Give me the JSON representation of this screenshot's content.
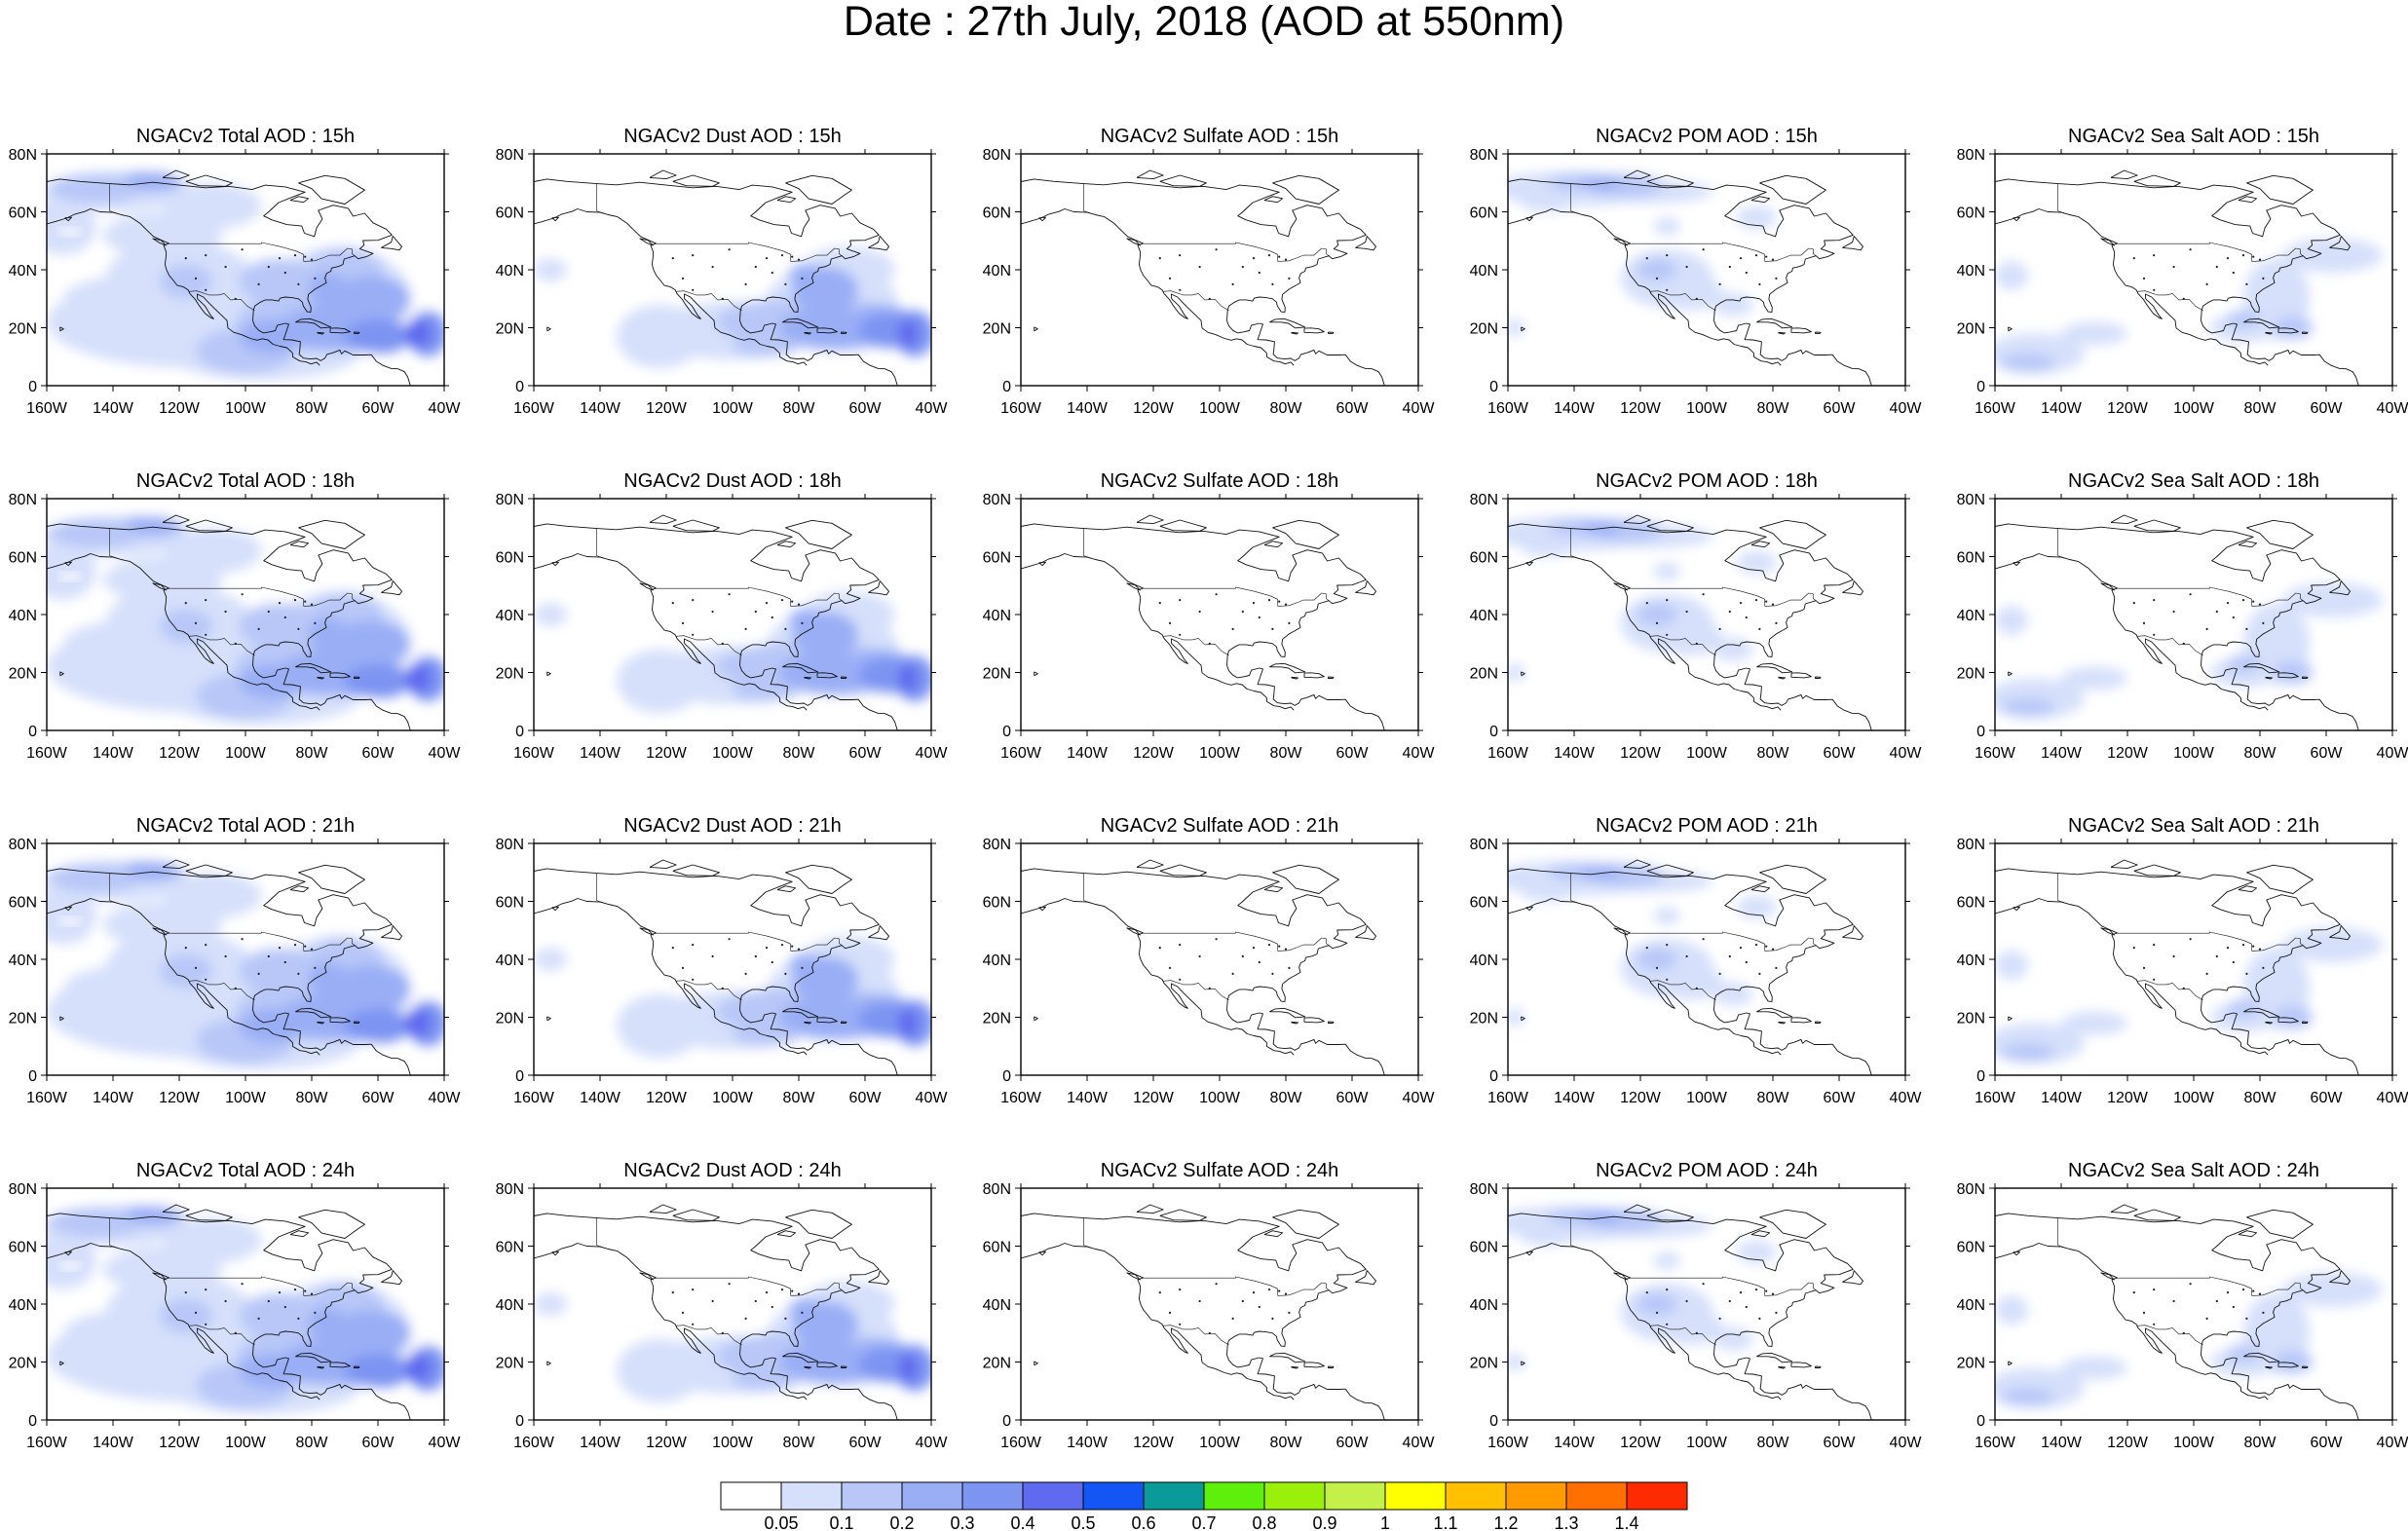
{
  "figure": {
    "title": "Date : 27th July, 2018 (AOD at 550nm)"
  },
  "panels": [
    {
      "row": 0,
      "col": 0,
      "title": "NGACv2 Total AOD : 15h",
      "variable": "total",
      "hour": "15h"
    },
    {
      "row": 0,
      "col": 1,
      "title": "NGACv2 Dust AOD : 15h",
      "variable": "dust",
      "hour": "15h"
    },
    {
      "row": 0,
      "col": 2,
      "title": "NGACv2 Sulfate AOD : 15h",
      "variable": "sulfate",
      "hour": "15h"
    },
    {
      "row": 0,
      "col": 3,
      "title": "NGACv2 POM AOD : 15h",
      "variable": "pom",
      "hour": "15h"
    },
    {
      "row": 0,
      "col": 4,
      "title": "NGACv2 Sea Salt AOD : 15h",
      "variable": "seasalt",
      "hour": "15h"
    },
    {
      "row": 1,
      "col": 0,
      "title": "NGACv2 Total AOD : 18h",
      "variable": "total",
      "hour": "18h"
    },
    {
      "row": 1,
      "col": 1,
      "title": "NGACv2 Dust AOD : 18h",
      "variable": "dust",
      "hour": "18h"
    },
    {
      "row": 1,
      "col": 2,
      "title": "NGACv2 Sulfate AOD : 18h",
      "variable": "sulfate",
      "hour": "18h"
    },
    {
      "row": 1,
      "col": 3,
      "title": "NGACv2 POM AOD : 18h",
      "variable": "pom",
      "hour": "18h"
    },
    {
      "row": 1,
      "col": 4,
      "title": "NGACv2 Sea Salt AOD : 18h",
      "variable": "seasalt",
      "hour": "18h"
    },
    {
      "row": 2,
      "col": 0,
      "title": "NGACv2 Total AOD : 21h",
      "variable": "total",
      "hour": "21h"
    },
    {
      "row": 2,
      "col": 1,
      "title": "NGACv2 Dust AOD : 21h",
      "variable": "dust",
      "hour": "21h"
    },
    {
      "row": 2,
      "col": 2,
      "title": "NGACv2 Sulfate AOD : 21h",
      "variable": "sulfate",
      "hour": "21h"
    },
    {
      "row": 2,
      "col": 3,
      "title": "NGACv2 POM AOD : 21h",
      "variable": "pom",
      "hour": "21h"
    },
    {
      "row": 2,
      "col": 4,
      "title": "NGACv2 Sea Salt AOD : 21h",
      "variable": "seasalt",
      "hour": "21h"
    },
    {
      "row": 3,
      "col": 0,
      "title": "NGACv2 Total AOD : 24h",
      "variable": "total",
      "hour": "24h"
    },
    {
      "row": 3,
      "col": 1,
      "title": "NGACv2 Dust AOD : 24h",
      "variable": "dust",
      "hour": "24h"
    },
    {
      "row": 3,
      "col": 2,
      "title": "NGACv2 Sulfate AOD : 24h",
      "variable": "sulfate",
      "hour": "24h"
    },
    {
      "row": 3,
      "col": 3,
      "title": "NGACv2 POM AOD : 24h",
      "variable": "pom",
      "hour": "24h"
    },
    {
      "row": 3,
      "col": 4,
      "title": "NGACv2 Sea Salt  AOD : 24h",
      "variable": "seasalt",
      "hour": "24h"
    }
  ],
  "axes": {
    "lon_ticks": [
      "160W",
      "140W",
      "120W",
      "100W",
      "80W",
      "60W",
      "40W"
    ],
    "lon_values": [
      -160,
      -140,
      -120,
      -100,
      -80,
      -60,
      -40
    ],
    "lat_ticks": [
      "0",
      "20N",
      "40N",
      "60N",
      "80N"
    ],
    "lat_values": [
      0,
      20,
      40,
      60,
      80
    ],
    "lon_range": [
      -160,
      -40
    ],
    "lat_range": [
      0,
      80
    ]
  },
  "colorbar": {
    "labels": [
      "0.05",
      "0.1",
      "0.2",
      "0.3",
      "0.4",
      "0.5",
      "0.6",
      "0.7",
      "0.8",
      "0.9",
      "1",
      "1.1",
      "1.2",
      "1.3",
      "1.4"
    ],
    "colors": [
      "#ffffff",
      "#d6e0fb",
      "#b8c7f8",
      "#9aaef6",
      "#7d94f2",
      "#5f6bef",
      "#1455f5",
      "#0b9a9a",
      "#5ef00a",
      "#9af00a",
      "#c4f04a",
      "#ffff00",
      "#ffc000",
      "#ff9a00",
      "#ff7000",
      "#ff2a00"
    ]
  },
  "chart_data": {
    "type": "heatmap",
    "title": "Date : 27th July, 2018 (AOD at 550nm)",
    "rows": [
      "15h",
      "18h",
      "21h",
      "24h"
    ],
    "columns": [
      "Total AOD",
      "Dust AOD",
      "Sulfate AOD",
      "POM AOD",
      "Sea Salt AOD"
    ],
    "xlabel": "",
    "ylabel": "",
    "xlim": [
      -160,
      -40
    ],
    "ylim": [
      0,
      80
    ],
    "contour_levels": [
      0.05,
      0.1,
      0.2,
      0.3,
      0.4,
      0.5,
      0.6,
      0.7,
      0.8,
      0.9,
      1,
      1.1,
      1.2,
      1.3,
      1.4
    ],
    "legend_position": "bottom"
  }
}
